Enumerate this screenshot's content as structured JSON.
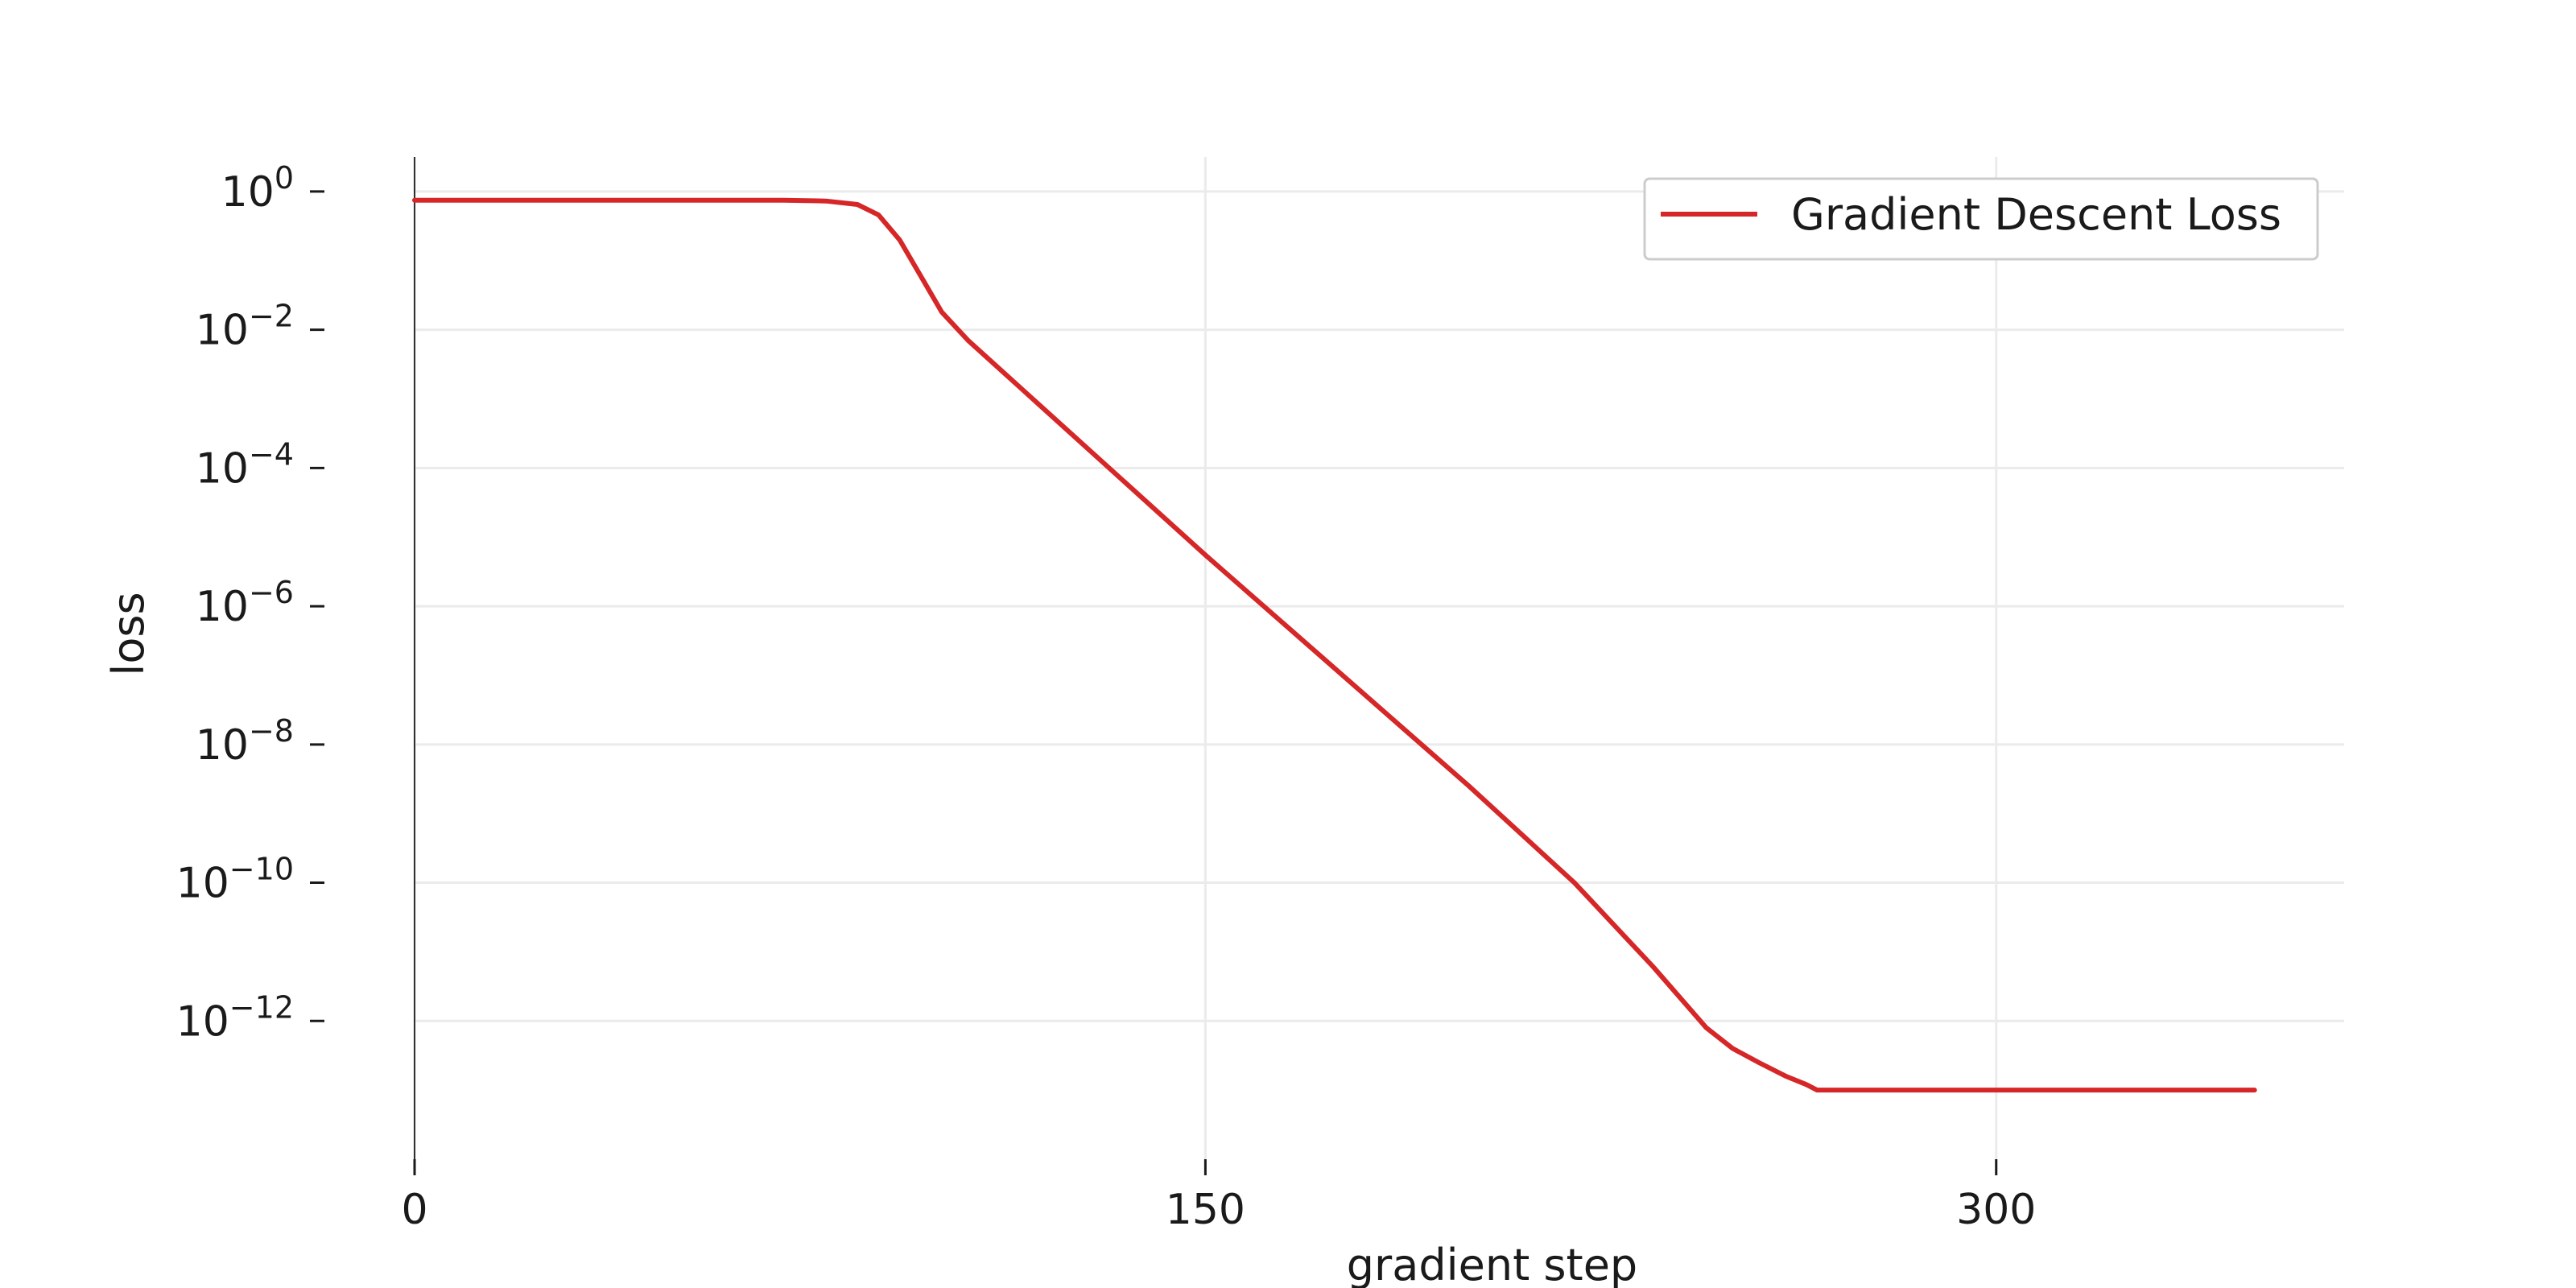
{
  "chart_data": {
    "type": "line",
    "title": "",
    "xlabel": "gradient step",
    "ylabel": "loss",
    "y_scale": "log",
    "xlim": [
      0,
      366
    ],
    "ylim_log10": [
      -14.0,
      0.5
    ],
    "x_ticks": [
      0,
      150,
      300
    ],
    "y_tick_exponents": [
      0,
      -2,
      -4,
      -6,
      -8,
      -10,
      -12
    ],
    "grid": true,
    "legend": {
      "placement": "top-right"
    },
    "series": [
      {
        "name": "Gradient Descent Loss",
        "color": "#d62728",
        "points": [
          {
            "x": 0,
            "y": 0.75
          },
          {
            "x": 40,
            "y": 0.75
          },
          {
            "x": 70,
            "y": 0.75
          },
          {
            "x": 78,
            "y": 0.73
          },
          {
            "x": 84,
            "y": 0.65
          },
          {
            "x": 88,
            "y": 0.46
          },
          {
            "x": 92,
            "y": 0.2
          },
          {
            "x": 96,
            "y": 0.06
          },
          {
            "x": 100,
            "y": 0.018
          },
          {
            "x": 105,
            "y": 0.007
          },
          {
            "x": 150,
            "y": 5.5e-06
          },
          {
            "x": 200,
            "y": 2.5e-09
          },
          {
            "x": 220,
            "y": 1e-10
          },
          {
            "x": 235,
            "y": 6e-12
          },
          {
            "x": 245,
            "y": 8e-13
          },
          {
            "x": 250,
            "y": 4e-13
          },
          {
            "x": 255,
            "y": 2.5e-13
          },
          {
            "x": 260,
            "y": 1.6e-13
          },
          {
            "x": 264,
            "y": 1.2e-13
          },
          {
            "x": 266,
            "y": 1e-13
          },
          {
            "x": 300,
            "y": 1e-13
          },
          {
            "x": 349,
            "y": 1e-13
          }
        ]
      }
    ]
  }
}
